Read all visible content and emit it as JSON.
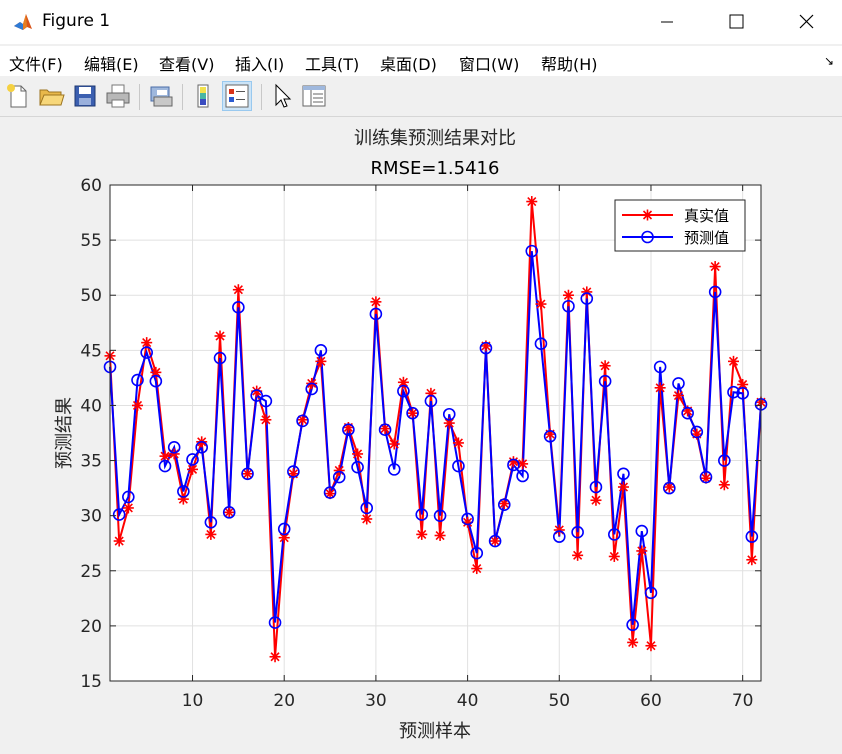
{
  "window": {
    "title": "Figure 1"
  },
  "menu": {
    "items": [
      "文件(F)",
      "编辑(E)",
      "查看(V)",
      "插入(I)",
      "工具(T)",
      "桌面(D)",
      "窗口(W)",
      "帮助(H)"
    ]
  },
  "toolbar": {
    "icons": [
      "new-file-icon",
      "open-folder-icon",
      "save-icon",
      "print-icon",
      "print-preview-icon",
      "colorbar-icon",
      "legend-icon",
      "pointer-icon",
      "property-inspector-icon"
    ]
  },
  "chart_data": {
    "type": "line",
    "title": "训练集预测结果对比",
    "subtitle": "RMSE=1.5416",
    "xlabel": "预测样本",
    "ylabel": "预测结果",
    "xlim": [
      1,
      72
    ],
    "ylim": [
      15,
      60
    ],
    "xticks": [
      10,
      20,
      30,
      40,
      50,
      60,
      70
    ],
    "yticks": [
      15,
      20,
      25,
      30,
      35,
      40,
      45,
      50,
      55,
      60
    ],
    "grid": true,
    "legend_position": "top-right",
    "x": [
      1,
      2,
      3,
      4,
      5,
      6,
      7,
      8,
      9,
      10,
      11,
      12,
      13,
      14,
      15,
      16,
      17,
      18,
      19,
      20,
      21,
      22,
      23,
      24,
      25,
      26,
      27,
      28,
      29,
      30,
      31,
      32,
      33,
      34,
      35,
      36,
      37,
      38,
      39,
      40,
      41,
      42,
      43,
      44,
      45,
      46,
      47,
      48,
      49,
      50,
      51,
      52,
      53,
      54,
      55,
      56,
      57,
      58,
      59,
      60,
      61,
      62,
      63,
      64,
      65,
      66,
      67,
      68,
      69,
      70,
      71,
      72
    ],
    "series": [
      {
        "name": "真实值",
        "color": "#ff0000",
        "marker": "asterisk",
        "values": [
          44.5,
          27.7,
          30.7,
          40.0,
          45.7,
          43.0,
          35.4,
          35.6,
          31.5,
          34.2,
          36.7,
          28.3,
          46.3,
          30.3,
          50.5,
          33.8,
          41.3,
          38.7,
          17.2,
          28.0,
          33.8,
          38.7,
          42.0,
          44.0,
          32.0,
          34.1,
          38.0,
          35.6,
          29.7,
          49.4,
          37.9,
          36.5,
          42.1,
          39.3,
          28.3,
          41.1,
          28.2,
          38.4,
          36.6,
          29.4,
          25.2,
          45.4,
          27.7,
          31.1,
          34.9,
          34.7,
          58.5,
          49.2,
          37.4,
          28.7,
          50.0,
          26.4,
          50.3,
          31.4,
          43.6,
          26.3,
          32.6,
          18.5,
          26.8,
          18.2,
          41.6,
          32.6,
          40.9,
          39.5,
          37.4,
          33.4,
          52.6,
          32.8,
          44.0,
          41.9,
          26.0,
          40.3
        ]
      },
      {
        "name": "预测值",
        "color": "#0000ff",
        "marker": "circle",
        "values": [
          43.5,
          30.1,
          31.7,
          42.3,
          44.8,
          42.2,
          34.5,
          36.2,
          32.2,
          35.1,
          36.2,
          29.4,
          44.3,
          30.3,
          48.9,
          33.8,
          40.9,
          40.4,
          20.3,
          28.8,
          34.0,
          38.6,
          41.5,
          45.0,
          32.1,
          33.5,
          37.8,
          34.4,
          30.7,
          48.3,
          37.8,
          34.2,
          41.3,
          39.3,
          30.1,
          40.4,
          30.0,
          39.2,
          34.5,
          29.7,
          26.6,
          45.2,
          27.7,
          31.0,
          34.6,
          33.6,
          54.0,
          45.6,
          37.2,
          28.1,
          49.0,
          28.5,
          49.7,
          32.6,
          42.2,
          28.3,
          33.8,
          20.1,
          28.6,
          23.0,
          43.5,
          32.5,
          42.0,
          39.3,
          37.6,
          33.5,
          50.3,
          35.0,
          41.2,
          41.1,
          28.1,
          40.1
        ]
      }
    ]
  }
}
